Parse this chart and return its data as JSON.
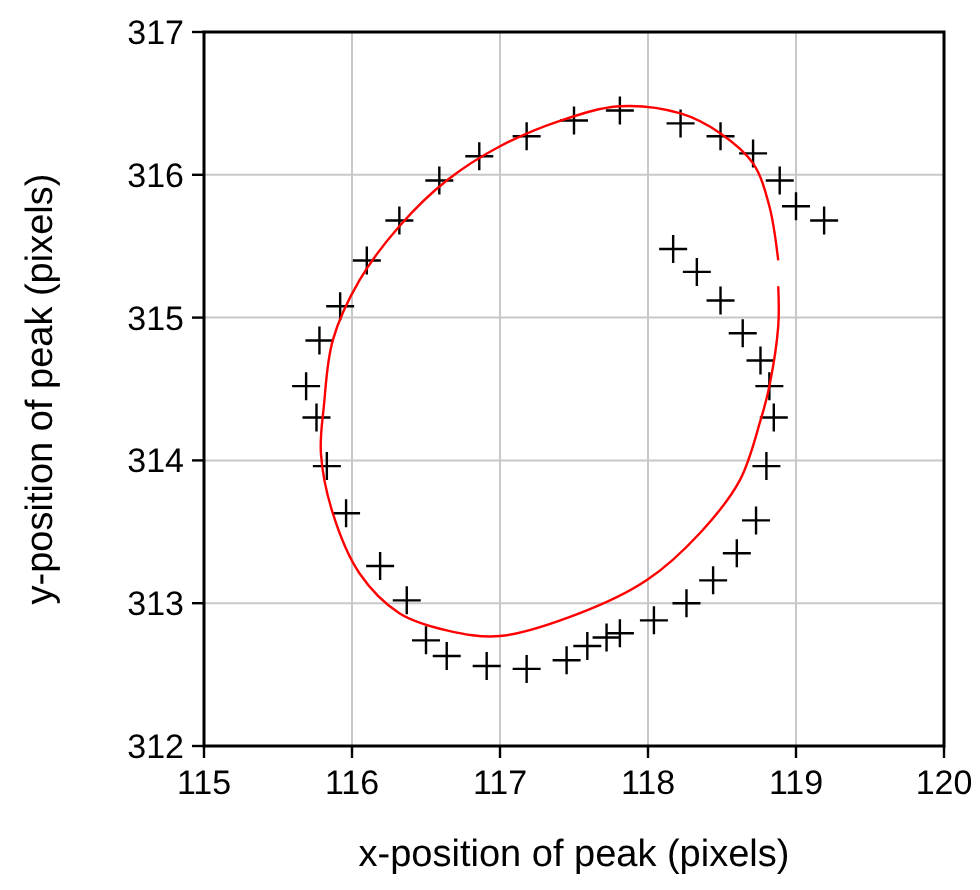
{
  "chart_data": {
    "type": "scatter",
    "xlabel": "x-position of peak (pixels)",
    "ylabel": "y-position of peak (pixels)",
    "xlim": [
      115,
      120
    ],
    "xticks": [
      115,
      116,
      117,
      118,
      119,
      120
    ],
    "ylim": [
      312,
      317
    ],
    "yticks": [
      312,
      313,
      314,
      315,
      316,
      317
    ],
    "grid": true,
    "series": [
      {
        "color": "#000000",
        "marker": "cross",
        "x": [
          118.17,
          118.33,
          118.49,
          118.64,
          118.76,
          118.82,
          118.85,
          118.8,
          118.73,
          118.6,
          118.44,
          118.26,
          118.04,
          117.81,
          117.72,
          117.59,
          117.45,
          117.18,
          116.91,
          116.64,
          116.5,
          116.37,
          116.19,
          115.96,
          115.83,
          115.76,
          115.69,
          115.78,
          115.92,
          116.1,
          116.32,
          116.59,
          116.86,
          117.18,
          117.5,
          117.81,
          118.22,
          118.49,
          118.71,
          118.89,
          119.0,
          119.19
        ],
        "values": [
          315.48,
          315.32,
          315.12,
          314.89,
          314.7,
          314.52,
          314.3,
          313.96,
          313.58,
          313.35,
          313.16,
          313.0,
          312.88,
          312.79,
          312.76,
          312.7,
          312.6,
          312.54,
          312.56,
          312.63,
          312.74,
          313.02,
          313.26,
          313.63,
          313.96,
          314.3,
          314.52,
          314.84,
          315.08,
          315.4,
          315.68,
          315.96,
          316.13,
          316.27,
          316.38,
          316.45,
          316.36,
          316.27,
          316.15,
          315.96,
          315.78,
          315.68
        ]
      },
      {
        "type": "line",
        "color": "#ff0000",
        "marker": "none",
        "x": [
          118.88,
          118.88,
          118.82,
          118.76,
          118.62,
          118.35,
          117.99,
          117.54,
          117.0,
          116.64,
          116.32,
          116.05,
          115.87,
          115.79,
          115.81,
          115.87,
          116.05,
          116.32,
          116.64,
          117.0,
          117.41,
          117.81,
          118.22,
          118.49,
          118.71,
          118.82,
          118.88
        ],
        "values": [
          315.22,
          314.94,
          314.52,
          314.28,
          313.86,
          313.49,
          313.16,
          312.93,
          312.77,
          312.81,
          312.93,
          313.21,
          313.63,
          314.05,
          314.38,
          314.84,
          315.26,
          315.64,
          315.96,
          316.2,
          316.38,
          316.48,
          316.43,
          316.29,
          316.08,
          315.78,
          315.4
        ]
      }
    ]
  }
}
